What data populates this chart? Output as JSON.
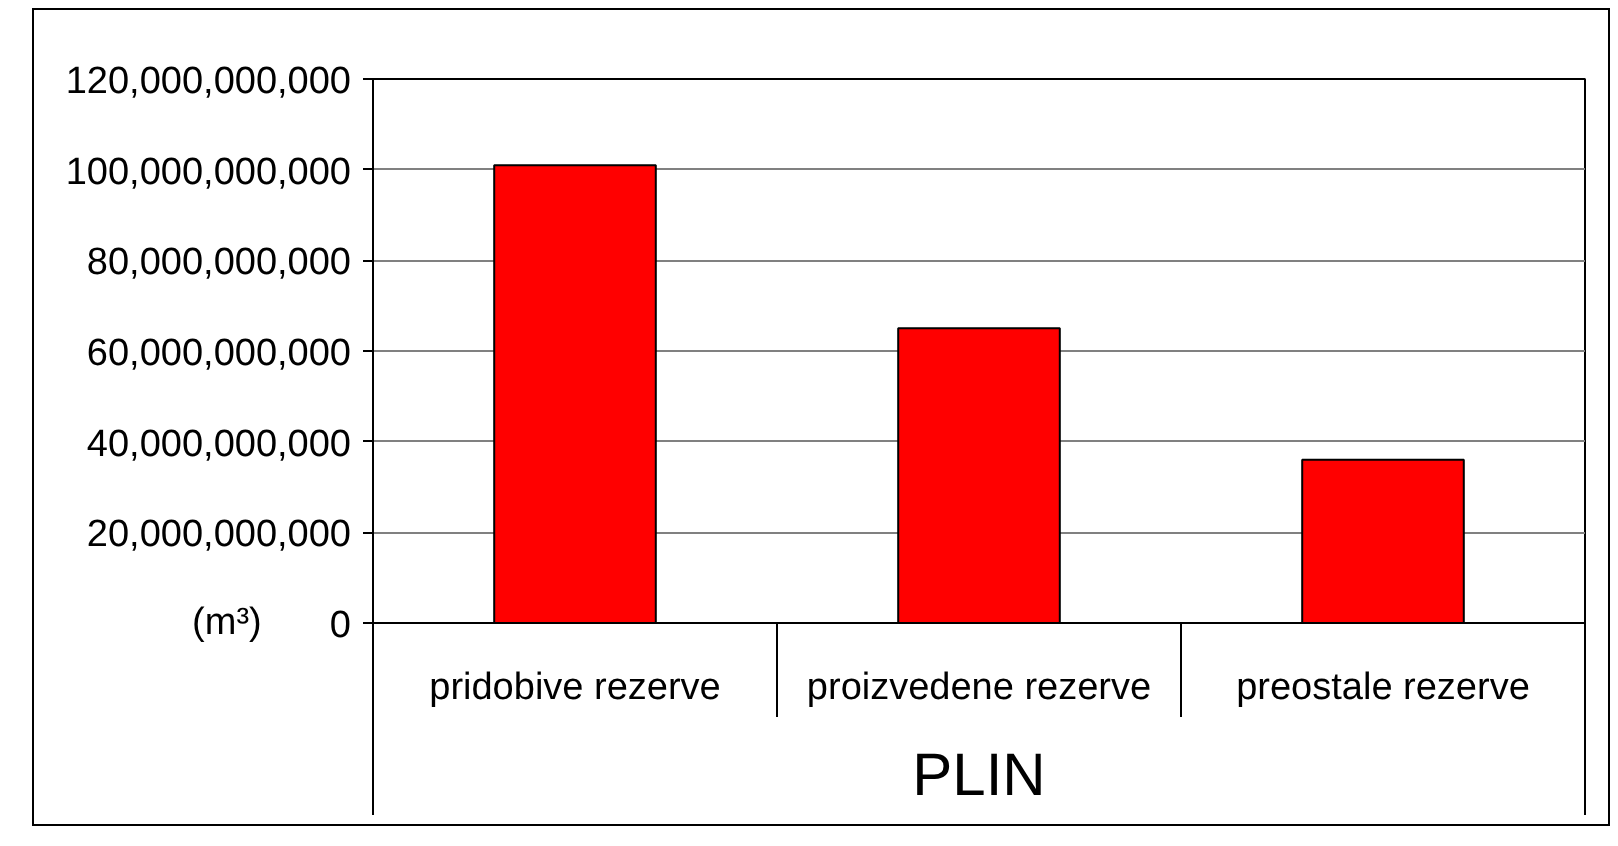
{
  "chart_data": {
    "type": "bar",
    "xlabel": "PLIN",
    "ylabel": "(m³)",
    "categories": [
      "pridobive rezerve",
      "proizvedene rezerve",
      "preostale rezerve"
    ],
    "values": [
      101000000000,
      65000000000,
      36000000000
    ],
    "color": "#ff0000",
    "ylim": [
      0,
      120000000000
    ],
    "yticks": [
      0,
      {
        "value": 20000000000,
        "label": "20,000,000,000"
      },
      {
        "value": 40000000000,
        "label": "40,000,000,000"
      },
      {
        "value": 60000000000,
        "label": "60,000,000,000"
      },
      {
        "value": 80000000000,
        "label": "80,000,000,000"
      },
      {
        "value": 100000000000,
        "label": "100,000,000,000"
      },
      {
        "value": 120000000000,
        "label": "120,000,000,000"
      }
    ],
    "grid": "y"
  }
}
